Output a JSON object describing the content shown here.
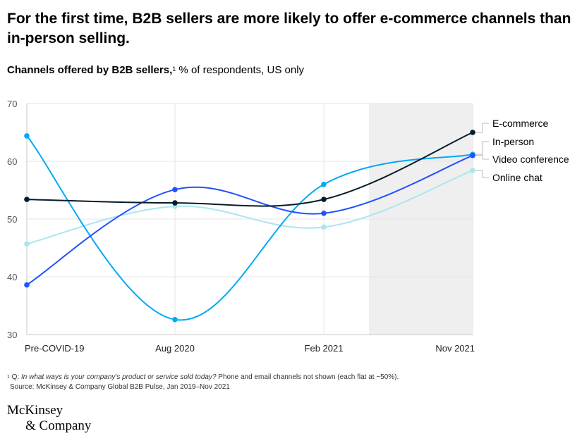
{
  "title": "For the first time, B2B sellers are more likely to offer e-commerce channels than in-person selling.",
  "subtitle": {
    "lead": "Channels offered by B2B sellers,",
    "footnote_marker": "1",
    "rest": " % of respondents, US only"
  },
  "footnote": {
    "marker": "1",
    "prefix": " Q: ",
    "question": "In what ways is your company's product or service sold today?",
    "rest": " Phone and email channels not shown (each flat at ~50%).",
    "source": "Source: McKinsey & Company Global B2B Pulse, Jan 2019–Nov 2021"
  },
  "logo": {
    "line1": "McKinsey",
    "line2": "& Company"
  },
  "colors": {
    "ecommerce": "#051C2C",
    "inperson": "#2251FF",
    "videoconference": "#00A9F4",
    "onlinechat": "#AAE6F0",
    "shade": "#EFEFEF",
    "grid": "#E6E6E6",
    "axis": "#C8C8C8"
  },
  "chart_data": {
    "type": "line",
    "categories": [
      "Pre-COVID-19",
      "Aug 2020",
      "Feb 2021",
      "Nov 2021"
    ],
    "ylim": [
      30,
      70
    ],
    "yticks": [
      30,
      40,
      50,
      60,
      70
    ],
    "grid": true,
    "shaded_region": "Feb 2021 – Nov 2021 (last portion)",
    "legend_placement": "right",
    "series": [
      {
        "name": "E-commerce",
        "color_key": "ecommerce",
        "values": [
          53.4,
          52.8,
          53.4,
          65.0
        ]
      },
      {
        "name": "In-person",
        "color_key": "inperson",
        "values": [
          38.6,
          55.1,
          51.0,
          61.0
        ]
      },
      {
        "name": "Video conference",
        "color_key": "videoconference",
        "values": [
          64.4,
          32.6,
          56.0,
          61.2
        ]
      },
      {
        "name": "Online chat",
        "color_key": "onlinechat",
        "values": [
          45.7,
          52.2,
          48.6,
          58.4
        ]
      }
    ]
  }
}
